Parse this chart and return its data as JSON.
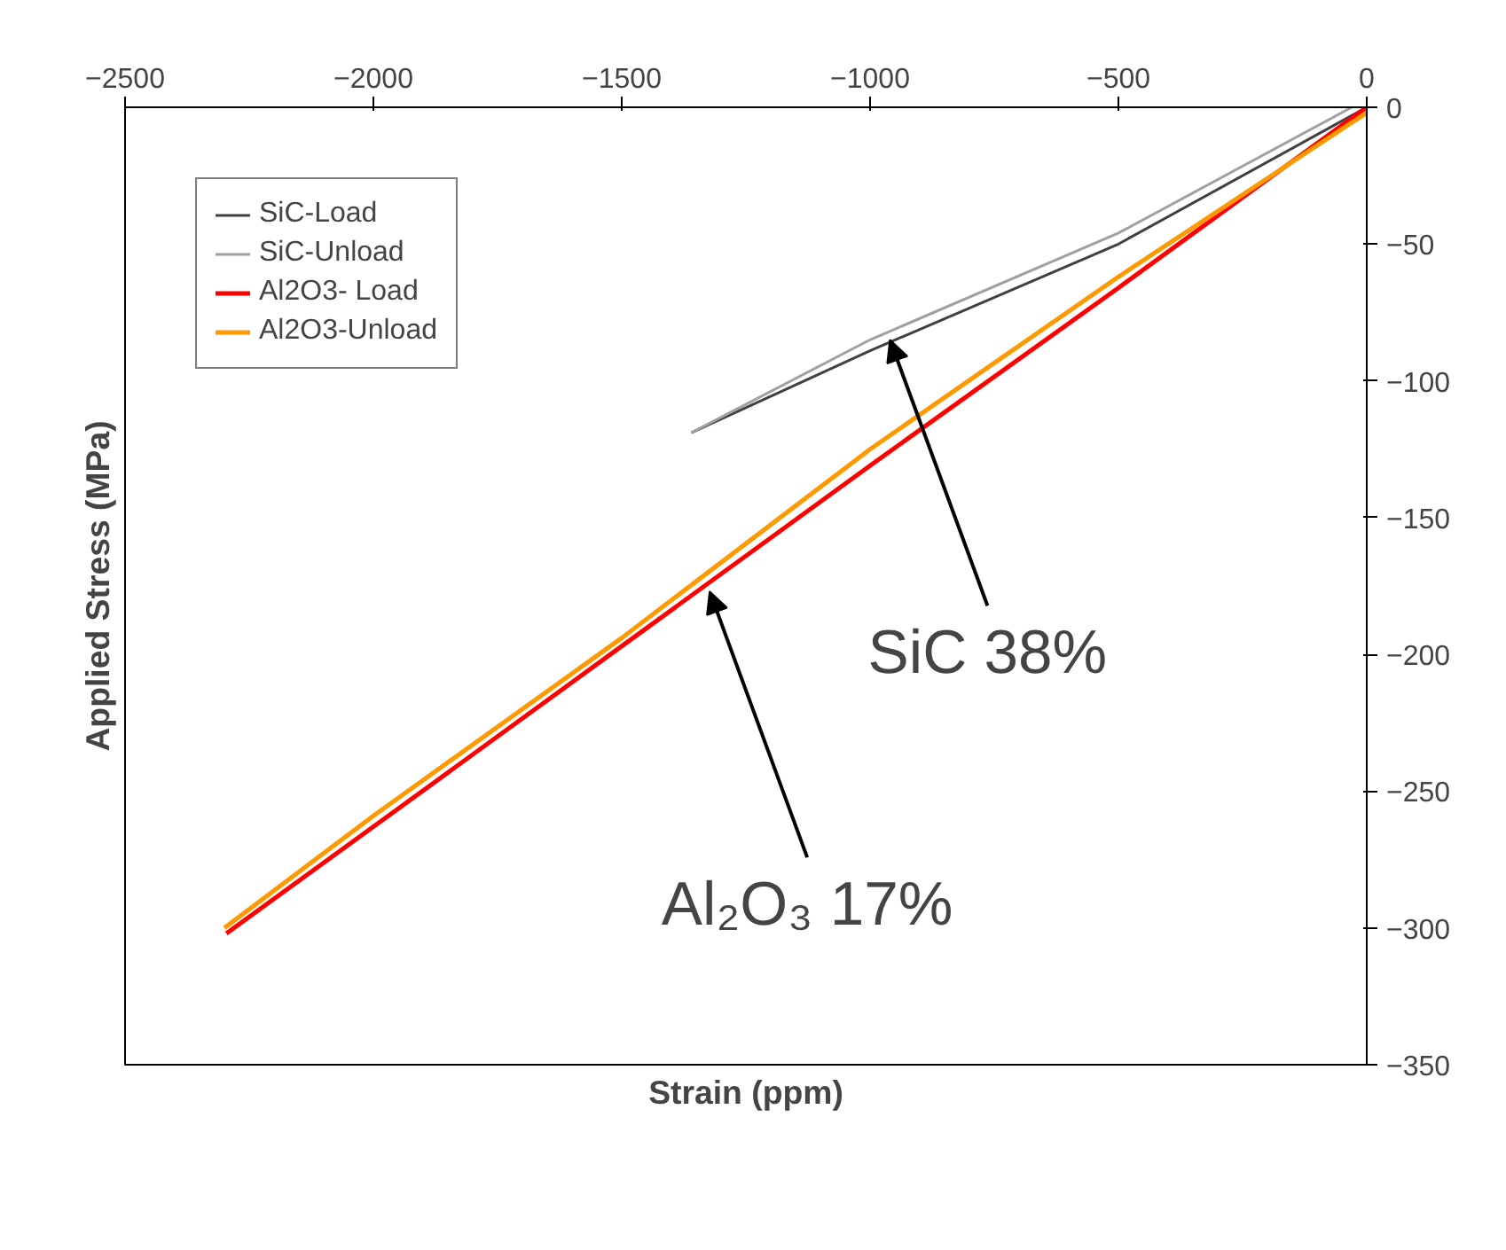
{
  "chart_data": {
    "type": "line",
    "xlabel": "Strain (ppm)",
    "ylabel": "Applied Stress (MPa)",
    "xlim": [
      -2500,
      0
    ],
    "xticks": [
      -2500,
      -2000,
      -1500,
      -1000,
      -500,
      0
    ],
    "ylim": [
      -350,
      0
    ],
    "yticks": [
      -350,
      -300,
      -250,
      -200,
      -150,
      -100,
      -50,
      0
    ],
    "grid": false,
    "legend": "top left",
    "marker": "none",
    "line_style": "solid",
    "series": [
      {
        "name": "SiC-Load",
        "color": "#404040",
        "x": [
          0,
          -500,
          -1000,
          -1360
        ],
        "values": [
          0,
          -50,
          -89,
          -119
        ]
      },
      {
        "name": "SiC-Unload",
        "color": "#a0a0a0",
        "x": [
          -30,
          -500,
          -1000,
          -1360
        ],
        "values": [
          0,
          -46,
          -85,
          -119
        ]
      },
      {
        "name": "Al2O3- Load",
        "color": "#ff0000",
        "x": [
          0,
          -500,
          -1000,
          -1500,
          -2000,
          -2296
        ],
        "values": [
          0,
          -66,
          -131,
          -197,
          -263,
          -302
        ]
      },
      {
        "name": "Al2O3-Unload",
        "color": "#ff9900",
        "x": [
          0,
          -500,
          -1000,
          -1500,
          -2000,
          -2300
        ],
        "values": [
          -2,
          -62,
          -125,
          -194,
          -259,
          -300
        ]
      }
    ],
    "annotations": [
      {
        "text": "SiC 38%",
        "x": -960,
        "y": -85
      },
      {
        "text": "Al₂O₃ 17%",
        "x": -1323,
        "y": -177
      }
    ]
  }
}
